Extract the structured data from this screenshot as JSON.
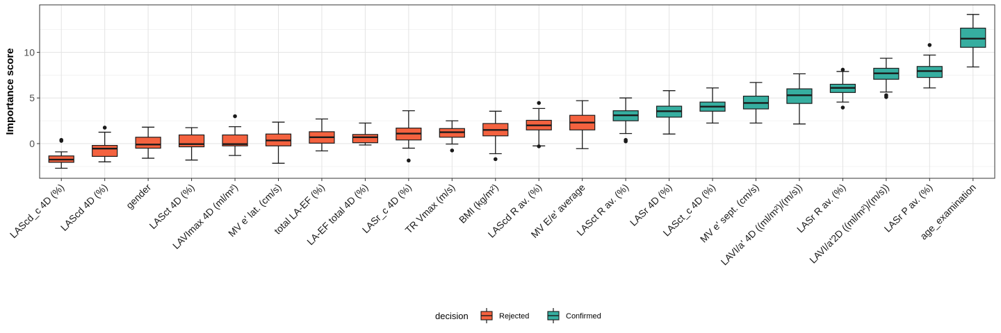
{
  "chart_data": {
    "type": "boxplot",
    "ylabel": "Importance score",
    "xlabel": "",
    "ylim": [
      -3.8,
      15.2
    ],
    "yticks": [
      0,
      5,
      10
    ],
    "grid": true,
    "legend": {
      "title": "decision",
      "position": "bottom",
      "entries": [
        {
          "label": "Rejected",
          "color": "#f4623f"
        },
        {
          "label": "Confirmed",
          "color": "#36aea0"
        }
      ]
    },
    "categories": [
      {
        "label": "LAScd_c 4D (%)",
        "decision": "Rejected",
        "whisker_low": -2.7,
        "q1": -2.05,
        "median": -1.75,
        "q3": -1.35,
        "whisker_high": -0.9,
        "outliers": [
          0.3,
          0.4
        ]
      },
      {
        "label": "LAScd 4D (%)",
        "decision": "Rejected",
        "whisker_low": -2.0,
        "q1": -1.4,
        "median": -0.55,
        "q3": -0.2,
        "whisker_high": 1.25,
        "outliers": [
          1.75
        ]
      },
      {
        "label": "gender",
        "decision": "Rejected",
        "whisker_low": -1.6,
        "q1": -0.5,
        "median": -0.1,
        "q3": 0.7,
        "whisker_high": 1.8,
        "outliers": []
      },
      {
        "label": "LASct 4D (%)",
        "decision": "Rejected",
        "whisker_low": -1.8,
        "q1": -0.35,
        "median": -0.05,
        "q3": 0.95,
        "whisker_high": 1.75,
        "outliers": []
      },
      {
        "label": "LAVImax 4D (ml/m²)",
        "decision": "Rejected",
        "whisker_low": -1.3,
        "q1": -0.25,
        "median": -0.05,
        "q3": 0.95,
        "whisker_high": 1.85,
        "outliers": [
          3.0
        ]
      },
      {
        "label": "MV e' lat. (cm/s)",
        "decision": "Rejected",
        "whisker_low": -2.15,
        "q1": -0.25,
        "median": 0.35,
        "q3": 1.05,
        "whisker_high": 2.35,
        "outliers": []
      },
      {
        "label": "total LA-EF (%)",
        "decision": "Rejected",
        "whisker_low": -0.8,
        "q1": 0.05,
        "median": 0.7,
        "q3": 1.3,
        "whisker_high": 2.7,
        "outliers": []
      },
      {
        "label": "LA-EF total 4D (%)",
        "decision": "Rejected",
        "whisker_low": -0.15,
        "q1": 0.1,
        "median": 0.7,
        "q3": 1.0,
        "whisker_high": 2.25,
        "outliers": []
      },
      {
        "label": "LASr_c 4D (%)",
        "decision": "Rejected",
        "whisker_low": -0.5,
        "q1": 0.4,
        "median": 1.1,
        "q3": 1.7,
        "whisker_high": 3.6,
        "outliers": [
          -1.85
        ]
      },
      {
        "label": "TR Vmax (m/s)",
        "decision": "Rejected",
        "whisker_low": -0.05,
        "q1": 0.7,
        "median": 1.25,
        "q3": 1.65,
        "whisker_high": 2.5,
        "outliers": [
          -0.75
        ]
      },
      {
        "label": "BMI (kg/m²)",
        "decision": "Rejected",
        "whisker_low": -1.1,
        "q1": 0.85,
        "median": 1.5,
        "q3": 2.2,
        "whisker_high": 3.55,
        "outliers": [
          -1.7
        ]
      },
      {
        "label": "LAScd R av. (%)",
        "decision": "Rejected",
        "whisker_low": -0.25,
        "q1": 1.5,
        "median": 2.0,
        "q3": 2.55,
        "whisker_high": 3.85,
        "outliers": [
          4.45,
          -0.3
        ]
      },
      {
        "label": "MV E/e' average",
        "decision": "Rejected",
        "whisker_low": -0.55,
        "q1": 1.5,
        "median": 2.3,
        "q3": 3.1,
        "whisker_high": 4.7,
        "outliers": []
      },
      {
        "label": "LASct R av. (%)",
        "decision": "Confirmed",
        "whisker_low": 1.1,
        "q1": 2.5,
        "median": 3.1,
        "q3": 3.6,
        "whisker_high": 5.0,
        "outliers": [
          0.4,
          0.25
        ]
      },
      {
        "label": "LASr 4D (%)",
        "decision": "Confirmed",
        "whisker_low": 1.05,
        "q1": 2.9,
        "median": 3.55,
        "q3": 4.1,
        "whisker_high": 5.8,
        "outliers": []
      },
      {
        "label": "LASct_c 4D (%)",
        "decision": "Confirmed",
        "whisker_low": 2.25,
        "q1": 3.55,
        "median": 4.05,
        "q3": 4.55,
        "whisker_high": 6.1,
        "outliers": []
      },
      {
        "label": "MV e' sept. (cm/s)",
        "decision": "Confirmed",
        "whisker_low": 2.25,
        "q1": 3.8,
        "median": 4.45,
        "q3": 5.2,
        "whisker_high": 6.7,
        "outliers": []
      },
      {
        "label": "LAVI/a' 4D ((ml/m²)/(m/s))",
        "decision": "Confirmed",
        "whisker_low": 2.15,
        "q1": 4.4,
        "median": 5.3,
        "q3": 6.0,
        "whisker_high": 7.65,
        "outliers": []
      },
      {
        "label": "LASr R av. (%)",
        "decision": "Confirmed",
        "whisker_low": 4.55,
        "q1": 5.6,
        "median": 6.1,
        "q3": 6.5,
        "whisker_high": 7.9,
        "outliers": [
          8.1,
          3.95
        ]
      },
      {
        "label": "LAVI/a'2D ((ml/m²)/(m/s))",
        "decision": "Confirmed",
        "whisker_low": 5.65,
        "q1": 7.05,
        "median": 7.7,
        "q3": 8.25,
        "whisker_high": 9.35,
        "outliers": [
          5.3,
          5.1
        ]
      },
      {
        "label": "LASr P av. (%)",
        "decision": "Confirmed",
        "whisker_low": 6.1,
        "q1": 7.25,
        "median": 7.95,
        "q3": 8.45,
        "whisker_high": 9.7,
        "outliers": [
          10.8
        ]
      },
      {
        "label": "age_examination",
        "decision": "Confirmed",
        "whisker_low": 8.4,
        "q1": 10.55,
        "median": 11.5,
        "q3": 12.65,
        "whisker_high": 14.15,
        "outliers": []
      }
    ]
  }
}
